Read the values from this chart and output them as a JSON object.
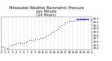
{
  "title": "Milwaukee Weather Barometric Pressure\nper Minute\n(24 Hours)",
  "title_fontsize": 3.8,
  "bg_color": "#ffffff",
  "plot_bg_color": "#ffffff",
  "dot_color": "#0000ff",
  "bar_color": "#0000ff",
  "dot_size": 0.5,
  "ylim": [
    29.35,
    30.35
  ],
  "xlim": [
    0,
    1440
  ],
  "yticks": [
    29.4,
    29.5,
    29.6,
    29.7,
    29.8,
    29.9,
    30.0,
    30.1,
    30.2,
    30.3
  ],
  "ytick_labels": [
    "29.4",
    "29.5",
    "29.6",
    "29.7",
    "29.8",
    "29.9",
    "30.0",
    "30.1",
    "30.2",
    "30.3"
  ],
  "xticks": [
    0,
    60,
    120,
    180,
    240,
    300,
    360,
    420,
    480,
    540,
    600,
    660,
    720,
    780,
    840,
    900,
    960,
    1020,
    1080,
    1140,
    1200,
    1260,
    1320,
    1380,
    1440
  ],
  "xtick_labels": [
    "0",
    "1",
    "2",
    "3",
    "4",
    "5",
    "6",
    "7",
    "8",
    "9",
    "10",
    "11",
    "12",
    "13",
    "14",
    "15",
    "16",
    "17",
    "18",
    "19",
    "20",
    "21",
    "22",
    "23",
    "0"
  ],
  "grid_color": "#aaaaaa",
  "tick_fontsize": 2.8,
  "data_x": [
    0,
    30,
    60,
    90,
    120,
    150,
    180,
    210,
    240,
    270,
    300,
    330,
    360,
    390,
    420,
    450,
    480,
    510,
    540,
    570,
    600,
    630,
    660,
    690,
    720,
    750,
    780,
    810,
    840,
    870,
    900,
    930,
    960,
    990,
    1020,
    1050,
    1080,
    1110,
    1140,
    1170,
    1200,
    1230,
    1260,
    1290,
    1320,
    1350,
    1380,
    1410,
    1440
  ],
  "data_y": [
    29.47,
    29.44,
    29.42,
    29.41,
    29.43,
    29.48,
    29.51,
    29.53,
    29.55,
    29.58,
    29.56,
    29.54,
    29.57,
    29.6,
    29.62,
    29.65,
    29.65,
    29.63,
    29.67,
    29.7,
    29.68,
    29.71,
    29.72,
    29.74,
    29.78,
    29.8,
    29.85,
    29.88,
    29.91,
    29.95,
    30.0,
    30.05,
    30.1,
    30.14,
    30.18,
    30.2,
    30.22,
    30.23,
    30.24,
    30.25,
    30.26,
    30.26,
    30.27,
    30.27,
    30.27,
    30.27,
    30.27,
    30.27,
    30.27
  ],
  "bar_x_start": 1190,
  "bar_x_end": 1395,
  "bar_y": 30.285,
  "bar_height": 0.018
}
